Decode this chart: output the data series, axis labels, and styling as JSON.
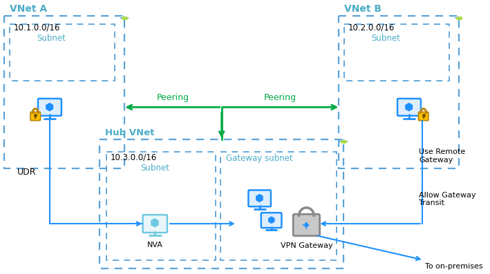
{
  "bg_color": "#ffffff",
  "dashed_blue": "#5BA3D9",
  "green": "#00AA44",
  "blue_text": "#4BACC6",
  "icon_blue": "#1E90FF",
  "light_blue": "#70C8E0",
  "gold": "#FFC000",
  "gray": "#909090",
  "arrow_blue": "#1E90FF",
  "vnet_a": "VNet A",
  "vnet_b": "VNet B",
  "hub_vnet": "Hub VNet",
  "cidr_a": "10.1.0.0/16",
  "cidr_b": "10.2.0.0/16",
  "cidr_hub": "10.3.0.0/16",
  "subnet": "Subnet",
  "gateway_subnet": "Gateway subnet",
  "nva": "NVA",
  "vpn_gateway": "VPN Gateway",
  "peering": "Peering",
  "udr": "UDR",
  "use_remote_gw": "Use Remote\nGateway",
  "allow_gw_transit": "Allow Gateway\nTransit",
  "to_on_premises": "To on-premises"
}
